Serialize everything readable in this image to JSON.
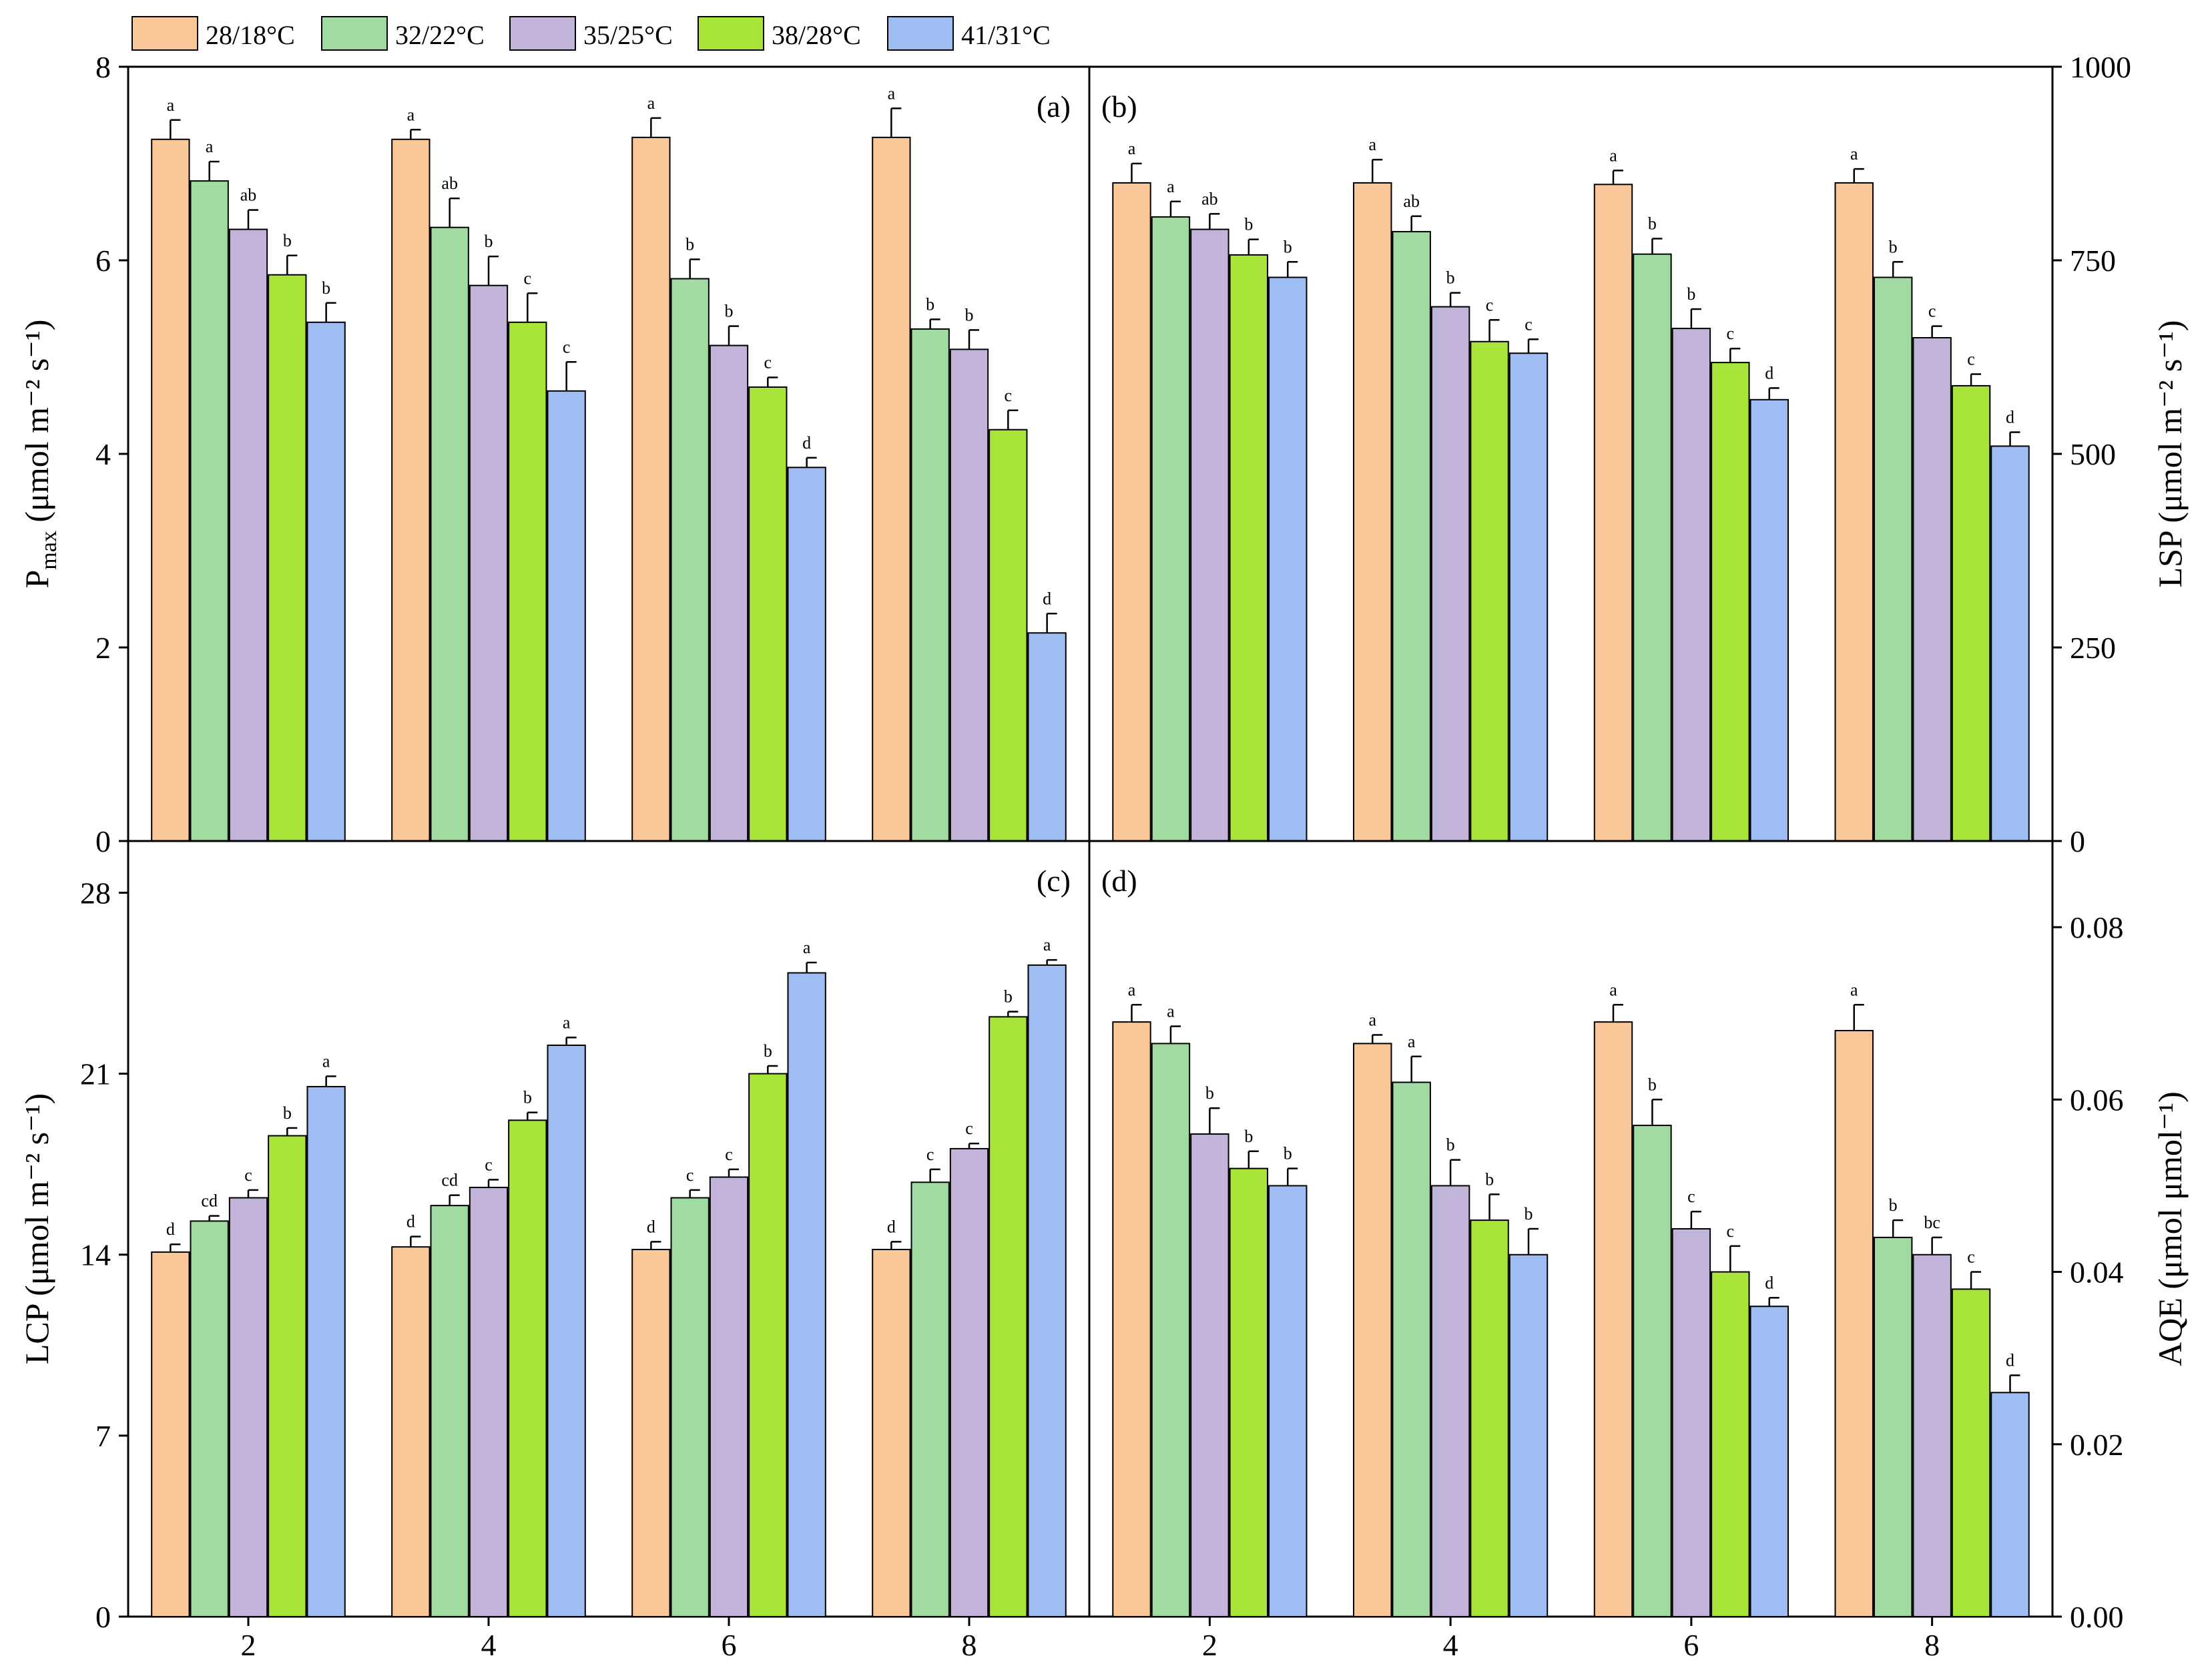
{
  "legend": [
    {
      "label": "28/18°C",
      "color": "#fac898"
    },
    {
      "label": "32/22°C",
      "color": "#a2dba2"
    },
    {
      "label": "35/25°C",
      "color": "#c2b4d9"
    },
    {
      "label": "38/28°C",
      "color": "#a8e43a"
    },
    {
      "label": "41/31°C",
      "color": "#9ebdf3"
    }
  ],
  "chart_data": [
    {
      "panel": "(a)",
      "type": "bar",
      "categories": [
        "2",
        "4",
        "6",
        "8"
      ],
      "ylabel_main": "P",
      "ylabel_sub": "max",
      "ylabel_unit": " (μmol m⁻² s⁻¹)",
      "ylim": [
        0,
        8
      ],
      "yticks": [
        "0",
        "2",
        "4",
        "6",
        "8"
      ],
      "series": [
        {
          "name": "28/18°C",
          "values": [
            7.25,
            7.25,
            7.27,
            7.27
          ],
          "errors": [
            0.2,
            0.1,
            0.2,
            0.3
          ],
          "letters": [
            "a",
            "a",
            "a",
            "a"
          ]
        },
        {
          "name": "32/22°C",
          "values": [
            6.82,
            6.34,
            5.81,
            5.29
          ],
          "errors": [
            0.2,
            0.3,
            0.2,
            0.1
          ],
          "letters": [
            "a",
            "ab",
            "b",
            "b"
          ]
        },
        {
          "name": "35/25°C",
          "values": [
            6.32,
            5.74,
            5.12,
            5.08
          ],
          "errors": [
            0.2,
            0.3,
            0.2,
            0.2
          ],
          "letters": [
            "ab",
            "b",
            "b",
            "b"
          ]
        },
        {
          "name": "38/28°C",
          "values": [
            5.85,
            5.36,
            4.69,
            4.25
          ],
          "errors": [
            0.2,
            0.3,
            0.1,
            0.2
          ],
          "letters": [
            "b",
            "c",
            "c",
            "c"
          ]
        },
        {
          "name": "41/31°C",
          "values": [
            5.36,
            4.65,
            3.86,
            2.15
          ],
          "errors": [
            0.2,
            0.3,
            0.1,
            0.2
          ],
          "letters": [
            "b",
            "c",
            "d",
            "d"
          ]
        }
      ]
    },
    {
      "panel": "(b)",
      "type": "bar",
      "categories": [
        "2",
        "4",
        "6",
        "8"
      ],
      "ylabel_main": "LSP",
      "ylabel_sub": "",
      "ylabel_unit": " (μmol m⁻² s⁻¹)",
      "ylim": [
        0,
        1000
      ],
      "yticks": [
        "0",
        "250",
        "500",
        "750",
        "1000"
      ],
      "series": [
        {
          "name": "28/18°C",
          "values": [
            850,
            850,
            848,
            850
          ],
          "errors": [
            25,
            30,
            18,
            18
          ],
          "letters": [
            "a",
            "a",
            "a",
            "a"
          ]
        },
        {
          "name": "32/22°C",
          "values": [
            806,
            787,
            758,
            728
          ],
          "errors": [
            20,
            20,
            20,
            20
          ],
          "letters": [
            "a",
            "ab",
            "b",
            "b"
          ]
        },
        {
          "name": "35/25°C",
          "values": [
            790,
            690,
            662,
            650
          ],
          "errors": [
            20,
            18,
            25,
            15
          ],
          "letters": [
            "ab",
            "b",
            "b",
            "c"
          ]
        },
        {
          "name": "38/28°C",
          "values": [
            757,
            645,
            618,
            588
          ],
          "errors": [
            20,
            28,
            18,
            15
          ],
          "letters": [
            "b",
            "c",
            "c",
            "c"
          ]
        },
        {
          "name": "41/31°C",
          "values": [
            728,
            630,
            570,
            510
          ],
          "errors": [
            20,
            18,
            15,
            18
          ],
          "letters": [
            "b",
            "c",
            "d",
            "d"
          ]
        }
      ]
    },
    {
      "panel": "(c)",
      "type": "bar",
      "categories": [
        "2",
        "4",
        "6",
        "8"
      ],
      "xlabel": "",
      "ylabel_main": "LCP",
      "ylabel_sub": "",
      "ylabel_unit": " (μmol m⁻² s⁻¹)",
      "ylim": [
        0,
        30
      ],
      "yticks": [
        "0",
        "7",
        "14",
        "21",
        "28"
      ],
      "series": [
        {
          "name": "28/18°C",
          "values": [
            14.1,
            14.3,
            14.2,
            14.2
          ],
          "errors": [
            0.3,
            0.4,
            0.3,
            0.3
          ],
          "letters": [
            "d",
            "d",
            "d",
            "d"
          ]
        },
        {
          "name": "32/22°C",
          "values": [
            15.3,
            15.9,
            16.2,
            16.8
          ],
          "errors": [
            0.2,
            0.4,
            0.3,
            0.5
          ],
          "letters": [
            "cd",
            "cd",
            "c",
            "c"
          ]
        },
        {
          "name": "35/25°C",
          "values": [
            16.2,
            16.6,
            17.0,
            18.1
          ],
          "errors": [
            0.3,
            0.3,
            0.3,
            0.2
          ],
          "letters": [
            "c",
            "c",
            "c",
            "c"
          ]
        },
        {
          "name": "38/28°C",
          "values": [
            18.6,
            19.2,
            21.0,
            23.2
          ],
          "errors": [
            0.3,
            0.3,
            0.3,
            0.2
          ],
          "letters": [
            "b",
            "b",
            "b",
            "b"
          ]
        },
        {
          "name": "41/31°C",
          "values": [
            20.5,
            22.1,
            24.9,
            25.2
          ],
          "errors": [
            0.4,
            0.3,
            0.4,
            0.2
          ],
          "letters": [
            "a",
            "a",
            "a",
            "a"
          ]
        }
      ]
    },
    {
      "panel": "(d)",
      "type": "bar",
      "categories": [
        "2",
        "4",
        "6",
        "8"
      ],
      "xlabel": "",
      "ylabel_main": "AQE",
      "ylabel_sub": "",
      "ylabel_unit": " (μmol μmol⁻¹)",
      "ylim": [
        0,
        0.09
      ],
      "yticks": [
        "0.00",
        "0.02",
        "0.04",
        "0.06",
        "0.08"
      ],
      "series": [
        {
          "name": "28/18°C",
          "values": [
            0.069,
            0.0665,
            0.069,
            0.068
          ],
          "errors": [
            0.002,
            0.001,
            0.002,
            0.003
          ],
          "letters": [
            "a",
            "a",
            "a",
            "a"
          ]
        },
        {
          "name": "32/22°C",
          "values": [
            0.0665,
            0.062,
            0.057,
            0.044
          ],
          "errors": [
            0.002,
            0.003,
            0.003,
            0.002
          ],
          "letters": [
            "a",
            "a",
            "b",
            "b"
          ]
        },
        {
          "name": "35/25°C",
          "values": [
            0.056,
            0.05,
            0.045,
            0.042
          ],
          "errors": [
            0.003,
            0.003,
            0.002,
            0.002
          ],
          "letters": [
            "b",
            "b",
            "c",
            "bc"
          ]
        },
        {
          "name": "38/28°C",
          "values": [
            0.052,
            0.046,
            0.04,
            0.038
          ],
          "errors": [
            0.002,
            0.003,
            0.003,
            0.002
          ],
          "letters": [
            "b",
            "b",
            "c",
            "c"
          ]
        },
        {
          "name": "41/31°C",
          "values": [
            0.05,
            0.042,
            0.036,
            0.026
          ],
          "errors": [
            0.002,
            0.003,
            0.001,
            0.002
          ],
          "letters": [
            "b",
            "b",
            "d",
            "d"
          ]
        }
      ]
    }
  ]
}
